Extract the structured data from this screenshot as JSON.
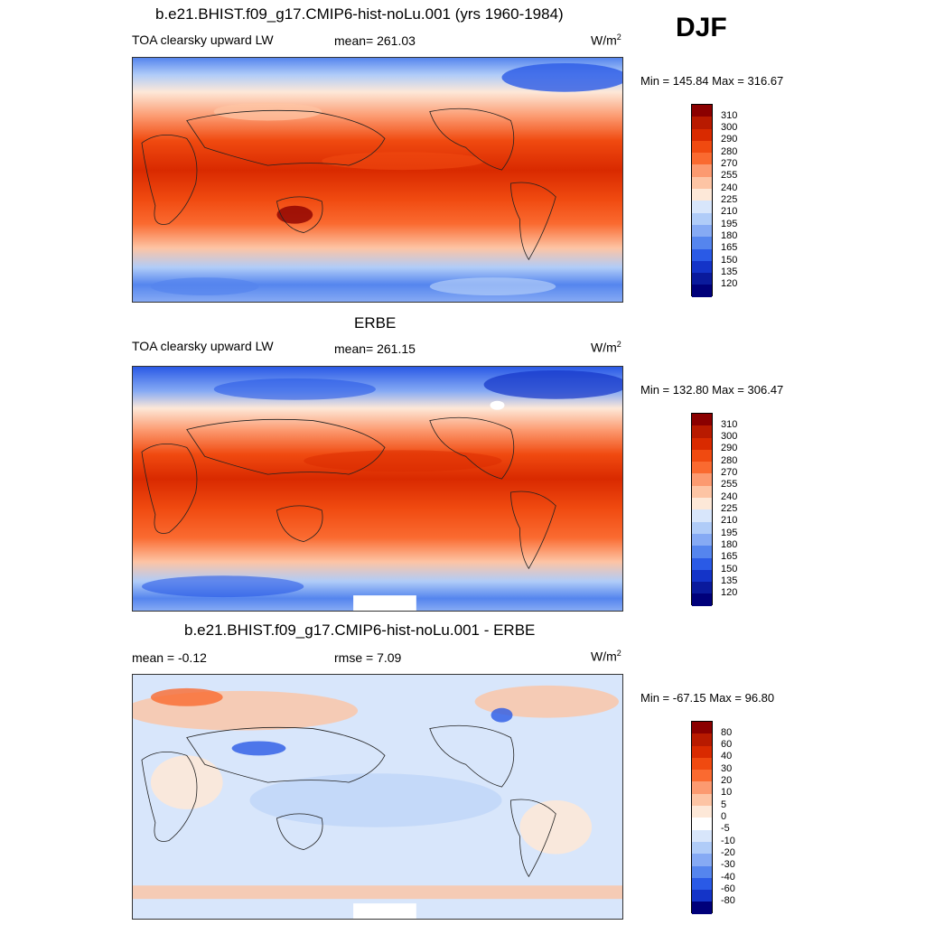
{
  "header": {
    "season": "DJF"
  },
  "panels": [
    {
      "title": "b.e21.BHIST.f09_g17.CMIP6-hist-noLu.001 (yrs 1960-1984)",
      "left_label": "TOA clearsky upward LW",
      "center_label": "mean= 261.03",
      "units_base": "W/m",
      "units_exp": "2",
      "minmax": "Min = 145.84 Max = 316.67",
      "colorbar_levels": [
        "310",
        "300",
        "290",
        "280",
        "270",
        "255",
        "240",
        "225",
        "210",
        "195",
        "180",
        "165",
        "150",
        "135",
        "120"
      ]
    },
    {
      "title": "ERBE",
      "left_label": "TOA clearsky upward LW",
      "center_label": "mean= 261.15",
      "units_base": "W/m",
      "units_exp": "2",
      "minmax": "Min = 132.80 Max = 306.47",
      "colorbar_levels": [
        "310",
        "300",
        "290",
        "280",
        "270",
        "255",
        "240",
        "225",
        "210",
        "195",
        "180",
        "165",
        "150",
        "135",
        "120"
      ]
    },
    {
      "title": "b.e21.BHIST.f09_g17.CMIP6-hist-noLu.001 - ERBE",
      "left_label": "mean =  -0.12",
      "center_label": "rmse =   7.09",
      "units_base": "W/m",
      "units_exp": "2",
      "minmax": "Min = -67.15 Max =  96.80",
      "colorbar_levels": [
        "80",
        "60",
        "40",
        "30",
        "20",
        "10",
        "5",
        "0",
        "-5",
        "-10",
        "-20",
        "-30",
        "-40",
        "-60",
        "-80"
      ]
    }
  ],
  "colors": {
    "field_scale": [
      "#8b0000",
      "#b81a00",
      "#d92a00",
      "#f04a10",
      "#fa6a30",
      "#fc9a70",
      "#fdc4a4",
      "#fde8d8",
      "#d8e6fb",
      "#b0ccf8",
      "#86aaf4",
      "#5585ee",
      "#2a5ae6",
      "#1434c8",
      "#0a1a9c",
      "#00007a"
    ],
    "diff_scale": [
      "#8b0000",
      "#b81a00",
      "#d92a00",
      "#f04a10",
      "#fa6a30",
      "#fc9a70",
      "#fdc4a4",
      "#fde8d8",
      "#ffffff",
      "#d8e6fb",
      "#b0ccf8",
      "#86aaf4",
      "#5585ee",
      "#2a5ae6",
      "#1434c8",
      "#00007a"
    ]
  }
}
